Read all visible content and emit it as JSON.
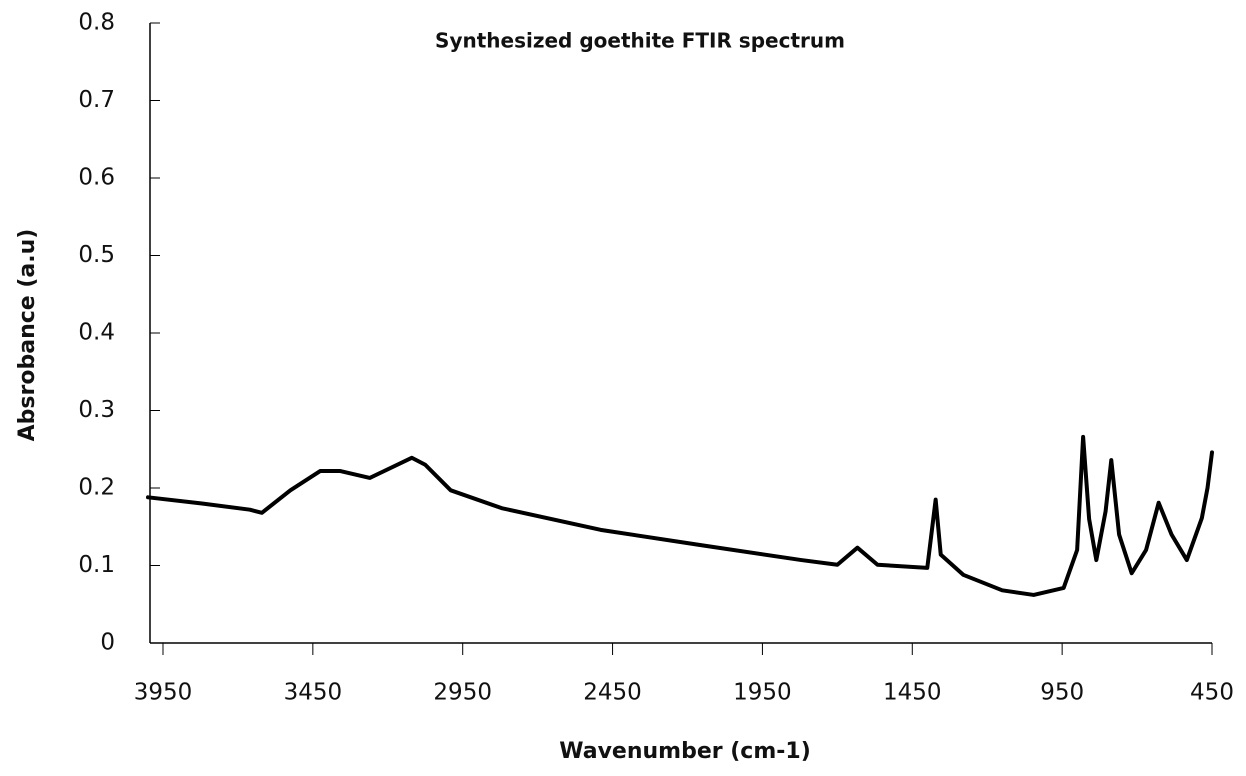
{
  "chart_data": {
    "type": "line",
    "title": "Synthesized goethite  FTIR spectrum",
    "x_label": "Wavenumber (cm-1)",
    "y_label": "Absrobance (a.u)",
    "x": [
      4000,
      3820,
      3660,
      3620,
      3525,
      3425,
      3360,
      3260,
      3120,
      3075,
      2990,
      2820,
      2490,
      2150,
      1820,
      1700,
      1633,
      1566,
      1400,
      1372,
      1355,
      1280,
      1150,
      1045,
      945,
      900,
      880,
      860,
      836,
      805,
      786,
      760,
      718,
      670,
      628,
      585,
      534,
      484,
      465,
      450
    ],
    "series": [
      {
        "name": "Synthesized goethite",
        "color": "#000000",
        "values": [
          0.188,
          0.18,
          0.172,
          0.168,
          0.197,
          0.222,
          0.222,
          0.213,
          0.239,
          0.23,
          0.197,
          0.174,
          0.146,
          0.126,
          0.107,
          0.101,
          0.123,
          0.101,
          0.097,
          0.185,
          0.114,
          0.088,
          0.068,
          0.062,
          0.071,
          0.12,
          0.266,
          0.16,
          0.107,
          0.17,
          0.236,
          0.14,
          0.09,
          0.12,
          0.181,
          0.14,
          0.107,
          0.161,
          0.2,
          0.246
        ]
      }
    ],
    "xlim": [
      4000,
      450
    ],
    "xticks": [
      3950,
      3450,
      2950,
      2450,
      1950,
      1450,
      950,
      450
    ],
    "ylim": [
      0,
      0.8
    ],
    "yticks": [
      0,
      0.1,
      0.2,
      0.3,
      0.4,
      0.5,
      0.6,
      0.7,
      0.8
    ],
    "grid": false
  }
}
